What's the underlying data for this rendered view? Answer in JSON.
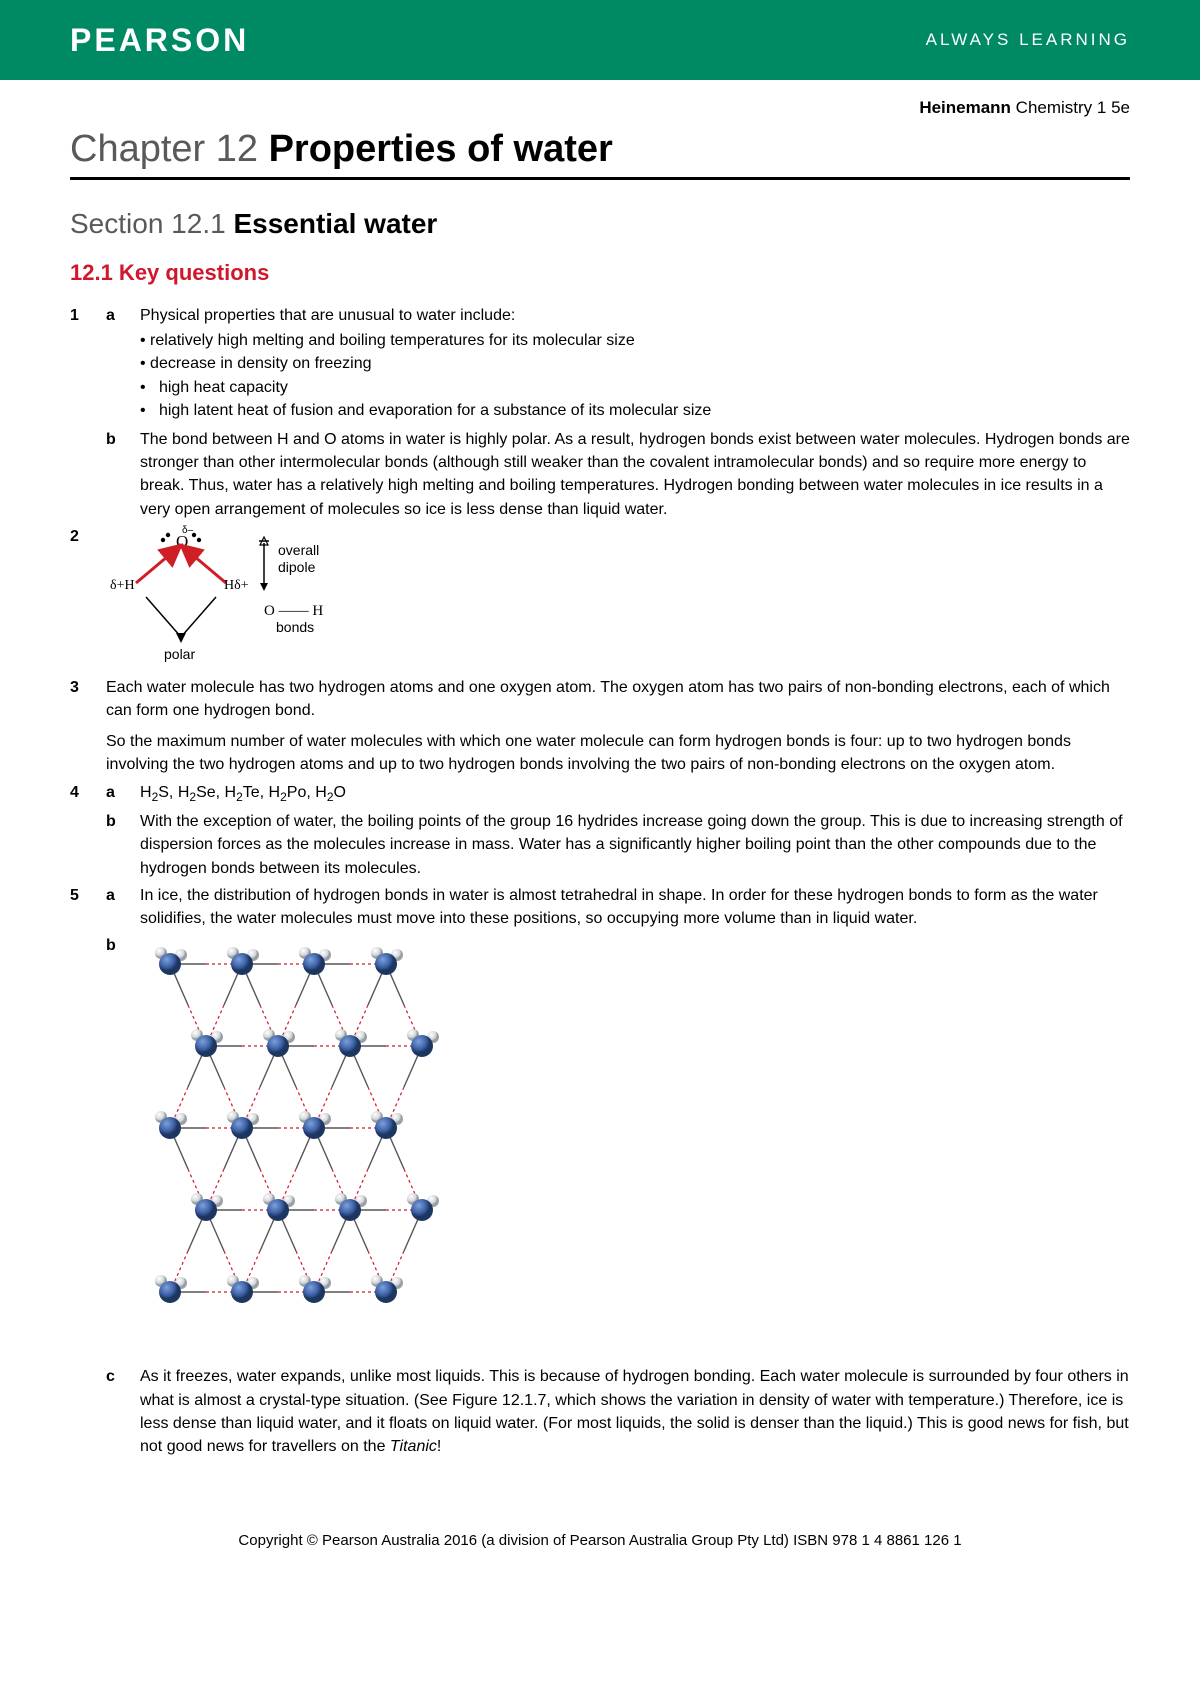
{
  "banner": {
    "left": "PEARSON",
    "right": "ALWAYS LEARNING",
    "bg_color": "#008a64",
    "text_color": "#ffffff"
  },
  "book_title_bold": "Heinemann",
  "book_title_rest": " Chemistry 1 5e",
  "chapter_prefix": "Chapter 12 ",
  "chapter_title": "Properties of water",
  "section_prefix": "Section 12.1 ",
  "section_title": "Essential water",
  "key_questions_heading": "12.1 Key questions",
  "accent_color": "#d1172b",
  "q1": {
    "num": "1",
    "a_label": "a",
    "a_lead": "Physical properties that are unusual to water include:",
    "a_bullets": [
      "relatively high melting and boiling temperatures for its molecular size",
      "decrease in density on freezing",
      " high heat capacity",
      " high latent heat of fusion and evaporation for a substance of its molecular size"
    ],
    "b_label": "b",
    "b_text": "The bond between H and O atoms in water is highly polar. As a result, hydrogen bonds exist between water molecules. Hydrogen bonds are stronger than other intermolecular bonds (although still weaker than the covalent intramolecular bonds) and so require more energy to break. Thus, water has a relatively high melting and boiling temperatures. Hydrogen bonding between water molecules in ice results in a very open arrangement of molecules so ice is less dense than liquid water."
  },
  "q2": {
    "num": "2",
    "diagram": {
      "O_label": "O",
      "O_charge": "δ–",
      "H_label_left": "δ+H",
      "H_label_right": "Hδ+",
      "overall_label": "overall dipole",
      "OH_label": "O —— H",
      "bonds_label": "bonds",
      "polar_label": "polar",
      "bond_color": "#cf1e24",
      "arrow_color": "#000000"
    }
  },
  "q3": {
    "num": "3",
    "p1": "Each water molecule has two hydrogen atoms and one oxygen atom. The oxygen atom has two pairs of non-bonding electrons, each of which can form one hydrogen bond.",
    "p2": "So the maximum number of water molecules with which one water molecule can form hydrogen bonds is four: up to two hydrogen bonds involving the two hydrogen atoms and up to two hydrogen bonds involving the two pairs of non-bonding electrons on the oxygen atom."
  },
  "q4": {
    "num": "4",
    "a_label": "a",
    "a_text_html": "H<sub>2</sub>S, H<sub>2</sub>Se, H<sub>2</sub>Te, H<sub>2</sub>Po, H<sub>2</sub>O",
    "b_label": "b",
    "b_text": "With the exception of water, the boiling points of the group 16 hydrides increase going down the group. This is due to increasing strength of dispersion forces as the molecules increase in mass. Water has a significantly higher boiling point than the other compounds due to the hydrogen bonds between its molecules."
  },
  "q5": {
    "num": "5",
    "a_label": "a",
    "a_text": "In ice, the distribution of hydrogen bonds in water is almost tetrahedral in shape. In order for these hydrogen bonds to form as the water solidifies, the water molecules must move into these positions, so occupying more volume than in liquid water.",
    "b_label": "b",
    "ice_diagram": {
      "O_color": "#3b5fa4",
      "O_highlight": "#7da1d8",
      "H_color": "#d0d4d8",
      "hbond_color": "#d1172b",
      "rows": 5,
      "cols": 4
    },
    "c_label": "c",
    "c_text_pre": "As it freezes, water expands, unlike most liquids. This is because of hydrogen bonding. Each water molecule is surrounded by four others in what is almost a crystal-type situation. (See Figure 12.1.7, which shows the variation in density of water with temperature.) Therefore, ice is less dense than liquid water, and it floats on liquid water. (For most liquids, the solid is denser than the liquid.) This is good news for fish, but not good news for travellers on the ",
    "c_text_italic": "Titanic",
    "c_text_post": "!"
  },
  "footer": "Copyright © Pearson Australia 2016 (a division of Pearson Australia Group Pty Ltd)   ISBN 978 1 4 8861 126 1"
}
